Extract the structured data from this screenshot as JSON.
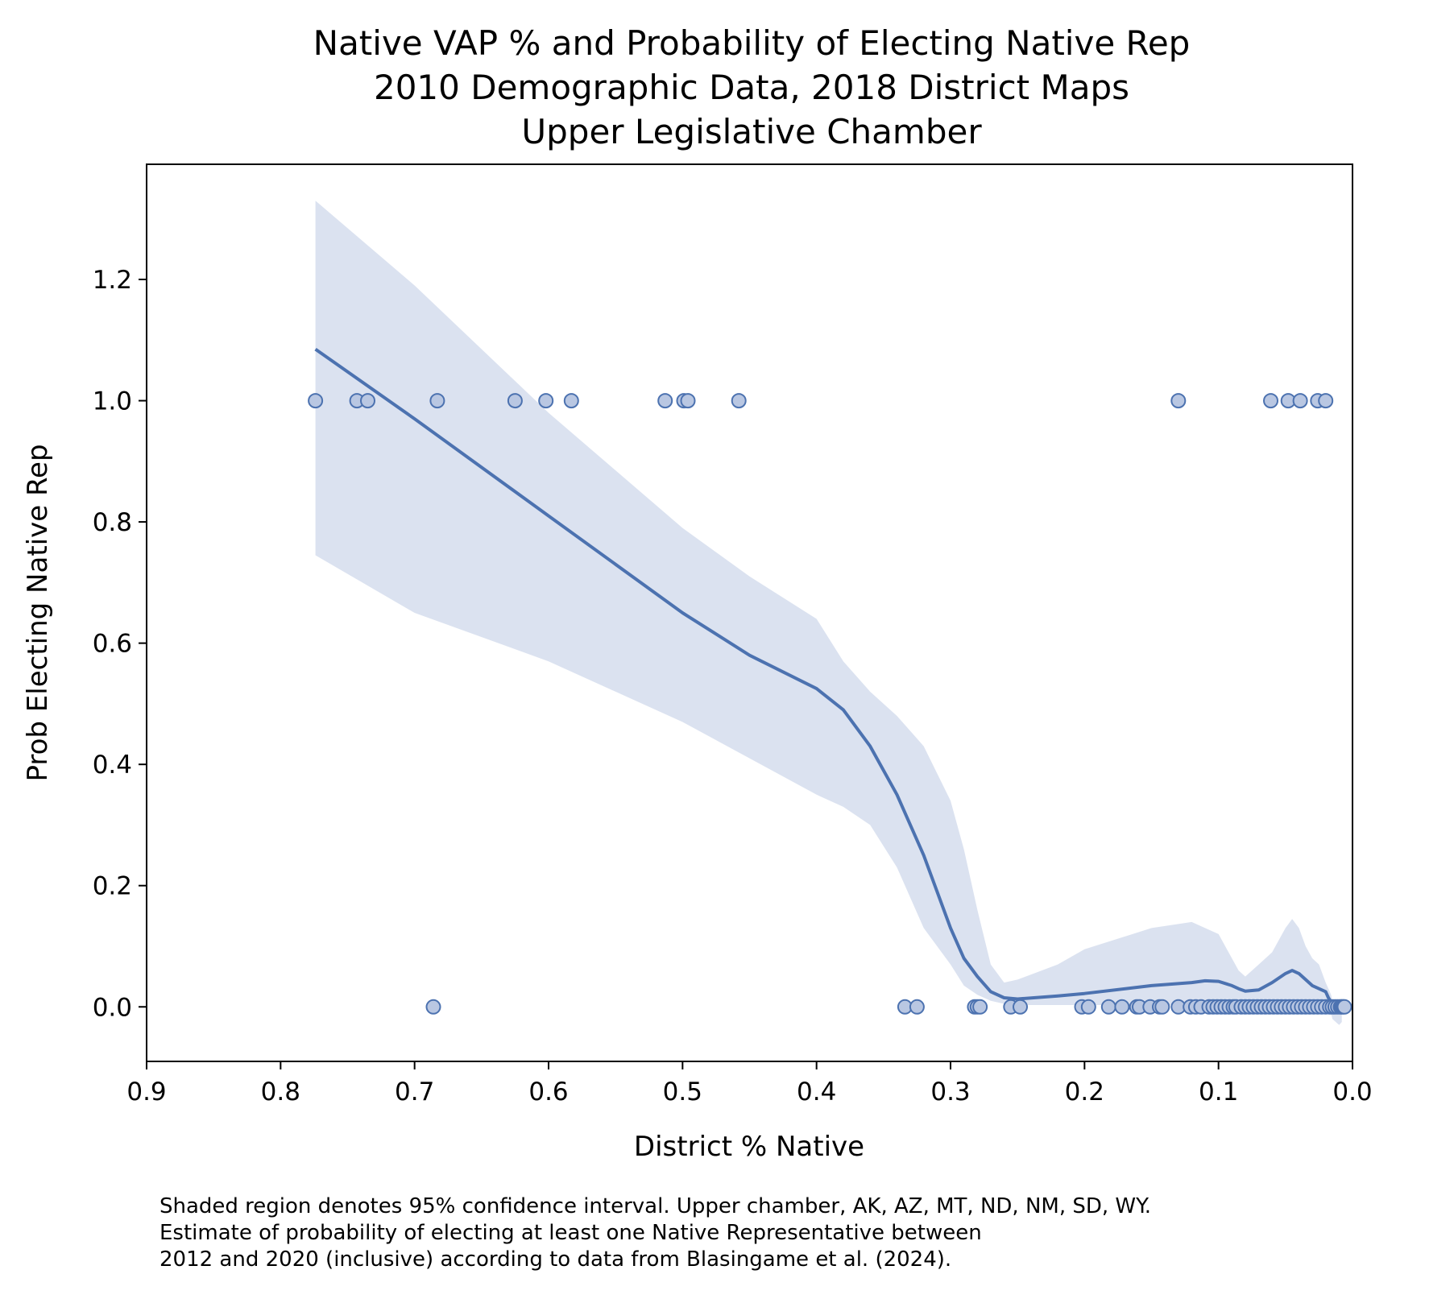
{
  "chart_data": {
    "type": "scatter",
    "title": [
      "Native VAP % and Probability of Electing Native Rep",
      "2010 Demographic Data, 2018 District Maps",
      "Upper Legislative Chamber"
    ],
    "xlabel": "District % Native",
    "ylabel": "Prob Electing Native Rep",
    "xlim": [
      0.9,
      0.0
    ],
    "x_reversed": true,
    "ylim": [
      -0.09,
      1.39
    ],
    "xticks": [
      "0.9",
      "0.8",
      "0.7",
      "0.6",
      "0.5",
      "0.4",
      "0.3",
      "0.2",
      "0.1",
      "0.0"
    ],
    "yticks": [
      "0.0",
      "0.2",
      "0.4",
      "0.6",
      "0.8",
      "1.0",
      "1.2"
    ],
    "grid": false,
    "color": "#4c72b0",
    "band_color": "#dbe2f0",
    "points": [
      [
        0.774,
        1
      ],
      [
        0.743,
        1
      ],
      [
        0.735,
        1
      ],
      [
        0.683,
        1
      ],
      [
        0.625,
        1
      ],
      [
        0.602,
        1
      ],
      [
        0.583,
        1
      ],
      [
        0.513,
        1
      ],
      [
        0.499,
        1
      ],
      [
        0.496,
        1
      ],
      [
        0.458,
        1
      ],
      [
        0.13,
        1
      ],
      [
        0.061,
        1
      ],
      [
        0.048,
        1
      ],
      [
        0.039,
        1
      ],
      [
        0.026,
        1
      ],
      [
        0.02,
        1
      ],
      [
        0.686,
        0
      ],
      [
        0.334,
        0
      ],
      [
        0.325,
        0
      ],
      [
        0.282,
        0
      ],
      [
        0.28,
        0
      ],
      [
        0.278,
        0
      ],
      [
        0.255,
        0
      ],
      [
        0.248,
        0
      ],
      [
        0.202,
        0
      ],
      [
        0.197,
        0
      ],
      [
        0.182,
        0
      ],
      [
        0.172,
        0
      ],
      [
        0.161,
        0
      ],
      [
        0.159,
        0
      ],
      [
        0.151,
        0
      ],
      [
        0.144,
        0
      ],
      [
        0.142,
        0
      ],
      [
        0.13,
        0
      ],
      [
        0.121,
        0
      ],
      [
        0.117,
        0
      ],
      [
        0.113,
        0
      ],
      [
        0.107,
        0
      ],
      [
        0.104,
        0
      ],
      [
        0.101,
        0
      ],
      [
        0.098,
        0
      ],
      [
        0.095,
        0
      ],
      [
        0.092,
        0
      ],
      [
        0.089,
        0
      ],
      [
        0.087,
        0
      ],
      [
        0.083,
        0
      ],
      [
        0.08,
        0
      ],
      [
        0.077,
        0
      ],
      [
        0.074,
        0
      ],
      [
        0.071,
        0
      ],
      [
        0.068,
        0
      ],
      [
        0.065,
        0
      ],
      [
        0.062,
        0
      ],
      [
        0.059,
        0
      ],
      [
        0.056,
        0
      ],
      [
        0.053,
        0
      ],
      [
        0.05,
        0
      ],
      [
        0.047,
        0
      ],
      [
        0.044,
        0
      ],
      [
        0.041,
        0
      ],
      [
        0.038,
        0
      ],
      [
        0.035,
        0
      ],
      [
        0.032,
        0
      ],
      [
        0.029,
        0
      ],
      [
        0.026,
        0
      ],
      [
        0.023,
        0
      ],
      [
        0.02,
        0
      ],
      [
        0.017,
        0
      ],
      [
        0.015,
        0
      ],
      [
        0.013,
        0
      ],
      [
        0.011,
        0
      ],
      [
        0.009,
        0
      ],
      [
        0.008,
        0
      ],
      [
        0.007,
        0
      ],
      [
        0.006,
        0
      ]
    ],
    "fit_line": {
      "x": [
        0.774,
        0.7,
        0.6,
        0.5,
        0.45,
        0.4,
        0.38,
        0.36,
        0.34,
        0.32,
        0.3,
        0.29,
        0.28,
        0.27,
        0.26,
        0.25,
        0.22,
        0.2,
        0.15,
        0.12,
        0.11,
        0.1,
        0.09,
        0.085,
        0.08,
        0.07,
        0.06,
        0.05,
        0.045,
        0.04,
        0.035,
        0.03,
        0.025,
        0.02,
        0.018,
        0.016,
        0.015,
        0.01,
        0.008
      ],
      "y": [
        1.085,
        0.97,
        0.81,
        0.65,
        0.58,
        0.525,
        0.49,
        0.43,
        0.35,
        0.25,
        0.13,
        0.08,
        0.05,
        0.025,
        0.015,
        0.013,
        0.018,
        0.022,
        0.035,
        0.04,
        0.043,
        0.042,
        0.035,
        0.03,
        0.026,
        0.028,
        0.04,
        0.055,
        0.06,
        0.055,
        0.045,
        0.035,
        0.03,
        0.025,
        0.015,
        0.008,
        0.005,
        0.003,
        0.003
      ]
    },
    "ci_band": {
      "x": [
        0.774,
        0.7,
        0.6,
        0.5,
        0.45,
        0.4,
        0.38,
        0.36,
        0.34,
        0.32,
        0.3,
        0.29,
        0.28,
        0.27,
        0.26,
        0.25,
        0.22,
        0.2,
        0.15,
        0.12,
        0.11,
        0.1,
        0.09,
        0.085,
        0.08,
        0.07,
        0.06,
        0.05,
        0.045,
        0.04,
        0.035,
        0.03,
        0.025,
        0.02,
        0.018,
        0.016,
        0.015,
        0.01,
        0.008
      ],
      "upper": [
        1.33,
        1.19,
        0.98,
        0.79,
        0.71,
        0.64,
        0.57,
        0.52,
        0.48,
        0.43,
        0.34,
        0.26,
        0.16,
        0.07,
        0.04,
        0.045,
        0.07,
        0.095,
        0.13,
        0.14,
        0.13,
        0.12,
        0.08,
        0.06,
        0.05,
        0.07,
        0.09,
        0.13,
        0.145,
        0.13,
        0.1,
        0.08,
        0.07,
        0.04,
        0.03,
        0.02,
        0.01,
        0.008,
        0.008
      ],
      "lower": [
        0.745,
        0.65,
        0.57,
        0.47,
        0.41,
        0.35,
        0.33,
        0.3,
        0.23,
        0.13,
        0.07,
        0.035,
        0.02,
        0.01,
        0.005,
        0.003,
        0.003,
        0.003,
        0.003,
        0.003,
        0.003,
        0.003,
        0.003,
        0.003,
        0.003,
        0.003,
        0.003,
        0.003,
        0.003,
        0.003,
        0.003,
        0.003,
        0.003,
        0.003,
        -0.005,
        -0.01,
        -0.02,
        -0.03,
        -0.025
      ]
    }
  },
  "caption": [
    "Shaded region denotes 95% confidence interval. Upper chamber, AK, AZ, MT, ND, NM, SD, WY.",
    "Estimate of probability of electing at least one Native Representative between",
    "2012 and 2020 (inclusive) according to data from Blasingame et al. (2024)."
  ]
}
